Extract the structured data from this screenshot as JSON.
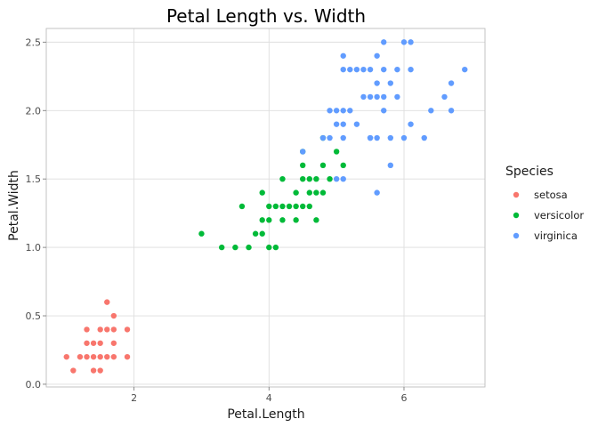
{
  "chart_data": {
    "type": "scatter",
    "title": "Petal Length vs. Width",
    "xlabel": "Petal.Length",
    "ylabel": "Petal.Width",
    "xlim": [
      0.7,
      7.2
    ],
    "ylim": [
      -0.02,
      2.6
    ],
    "xticks": [
      2,
      4,
      6
    ],
    "yticks": [
      0.0,
      0.5,
      1.0,
      1.5,
      2.0,
      2.5
    ],
    "ytick_labels": [
      "0.0",
      "0.5",
      "1.0",
      "1.5",
      "2.0",
      "2.5"
    ],
    "grid": true,
    "legend": {
      "title": "Species",
      "position": "right"
    },
    "series": [
      {
        "name": "setosa",
        "color": "#F8766D",
        "points": [
          [
            1.0,
            0.2
          ],
          [
            1.1,
            0.1
          ],
          [
            1.2,
            0.2
          ],
          [
            1.3,
            0.2
          ],
          [
            1.3,
            0.3
          ],
          [
            1.3,
            0.4
          ],
          [
            1.4,
            0.1
          ],
          [
            1.4,
            0.2
          ],
          [
            1.4,
            0.3
          ],
          [
            1.5,
            0.1
          ],
          [
            1.5,
            0.2
          ],
          [
            1.5,
            0.3
          ],
          [
            1.5,
            0.4
          ],
          [
            1.6,
            0.2
          ],
          [
            1.6,
            0.4
          ],
          [
            1.6,
            0.6
          ],
          [
            1.7,
            0.2
          ],
          [
            1.7,
            0.3
          ],
          [
            1.7,
            0.4
          ],
          [
            1.7,
            0.5
          ],
          [
            1.9,
            0.2
          ],
          [
            1.9,
            0.4
          ]
        ]
      },
      {
        "name": "versicolor",
        "color": "#00BA38",
        "points": [
          [
            3.0,
            1.1
          ],
          [
            3.3,
            1.0
          ],
          [
            3.5,
            1.0
          ],
          [
            3.6,
            1.3
          ],
          [
            3.7,
            1.0
          ],
          [
            3.8,
            1.1
          ],
          [
            3.9,
            1.1
          ],
          [
            3.9,
            1.2
          ],
          [
            3.9,
            1.4
          ],
          [
            4.0,
            1.0
          ],
          [
            4.0,
            1.2
          ],
          [
            4.0,
            1.3
          ],
          [
            4.1,
            1.0
          ],
          [
            4.1,
            1.3
          ],
          [
            4.2,
            1.2
          ],
          [
            4.2,
            1.3
          ],
          [
            4.2,
            1.5
          ],
          [
            4.3,
            1.3
          ],
          [
            4.4,
            1.2
          ],
          [
            4.4,
            1.3
          ],
          [
            4.4,
            1.4
          ],
          [
            4.5,
            1.3
          ],
          [
            4.5,
            1.5
          ],
          [
            4.5,
            1.7
          ],
          [
            4.6,
            1.3
          ],
          [
            4.6,
            1.4
          ],
          [
            4.6,
            1.5
          ],
          [
            4.7,
            1.2
          ],
          [
            4.7,
            1.4
          ],
          [
            4.7,
            1.5
          ],
          [
            4.8,
            1.4
          ],
          [
            4.8,
            1.8
          ],
          [
            4.9,
            1.5
          ],
          [
            5.0,
            1.7
          ],
          [
            5.1,
            1.6
          ],
          [
            4.5,
            1.6
          ],
          [
            4.8,
            1.6
          ]
        ]
      },
      {
        "name": "virginica",
        "color": "#619CFF",
        "points": [
          [
            4.5,
            1.7
          ],
          [
            4.8,
            1.8
          ],
          [
            4.9,
            1.8
          ],
          [
            4.9,
            2.0
          ],
          [
            5.0,
            1.5
          ],
          [
            5.0,
            1.9
          ],
          [
            5.0,
            2.0
          ],
          [
            5.1,
            1.5
          ],
          [
            5.1,
            1.8
          ],
          [
            5.1,
            1.9
          ],
          [
            5.1,
            2.0
          ],
          [
            5.1,
            2.3
          ],
          [
            5.1,
            2.4
          ],
          [
            5.2,
            2.0
          ],
          [
            5.2,
            2.3
          ],
          [
            5.3,
            1.9
          ],
          [
            5.3,
            2.3
          ],
          [
            5.4,
            2.1
          ],
          [
            5.4,
            2.3
          ],
          [
            5.5,
            1.8
          ],
          [
            5.5,
            2.1
          ],
          [
            5.5,
            1.8
          ],
          [
            5.6,
            1.4
          ],
          [
            5.6,
            1.8
          ],
          [
            5.6,
            2.1
          ],
          [
            5.6,
            2.2
          ],
          [
            5.6,
            2.4
          ],
          [
            5.7,
            2.1
          ],
          [
            5.7,
            2.3
          ],
          [
            5.7,
            2.5
          ],
          [
            5.8,
            1.6
          ],
          [
            5.8,
            1.8
          ],
          [
            5.8,
            2.2
          ],
          [
            5.9,
            2.1
          ],
          [
            5.9,
            2.3
          ],
          [
            6.0,
            1.8
          ],
          [
            6.0,
            2.5
          ],
          [
            6.1,
            1.9
          ],
          [
            6.1,
            2.3
          ],
          [
            6.1,
            2.5
          ],
          [
            6.3,
            1.8
          ],
          [
            6.4,
            2.0
          ],
          [
            6.6,
            2.1
          ],
          [
            6.7,
            2.0
          ],
          [
            6.7,
            2.2
          ],
          [
            6.9,
            2.3
          ],
          [
            5.7,
            2.0
          ],
          [
            5.5,
            2.3
          ]
        ]
      }
    ]
  }
}
